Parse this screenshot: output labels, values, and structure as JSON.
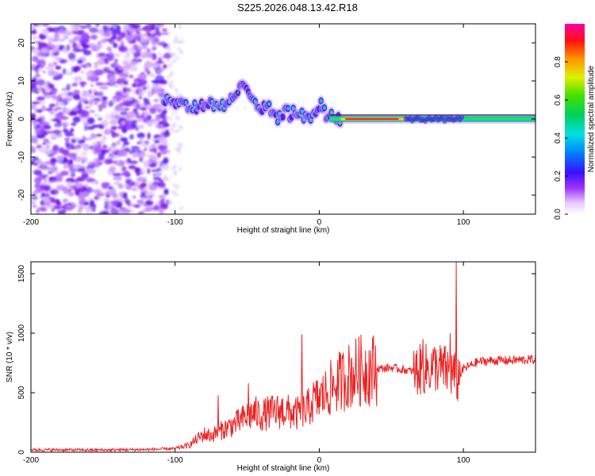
{
  "title": "S225.2026.048.13.42.R18",
  "colors": {
    "snr_line": "#ee2222",
    "spectrogram_low": "#7b00e0",
    "ridge": "#ff0000"
  },
  "chart_data": [
    {
      "type": "heatmap",
      "title": "",
      "xlabel": "Height of straight line (km)",
      "ylabel": "Frequency (Hz)",
      "xlim": [
        -200,
        150
      ],
      "ylim": [
        -25,
        25
      ],
      "x_ticks": [
        -200,
        -100,
        0,
        100
      ],
      "x_tick_labels": [
        "-200",
        "-100",
        "0",
        "100"
      ],
      "y_ticks": [
        20,
        10,
        0,
        -10,
        -20
      ],
      "y_tick_labels": [
        "20",
        "10",
        "0",
        "-10",
        "-20"
      ],
      "colorbar": {
        "label": "Normalized spectral amplitude",
        "range": [
          0,
          1
        ],
        "ticks": [
          0.0,
          0.2,
          0.4,
          0.6,
          0.8
        ],
        "tick_labels": [
          "0.0",
          "0.2",
          "0.4",
          "0.6",
          "0.8"
        ],
        "colormap": "rainbow (white-purple-blue-cyan-green-yellow-orange-red-magenta)"
      },
      "ridge": {
        "x": [
          -108,
          -100,
          -90,
          -80,
          -70,
          -60,
          -52,
          -45,
          -40,
          -35,
          -30,
          -25,
          -20,
          -15,
          -10,
          -5,
          0,
          2,
          5,
          10,
          15,
          30,
          50,
          60,
          70,
          80,
          90,
          100,
          110,
          130,
          150
        ],
        "y": [
          4,
          5,
          3,
          4,
          3,
          5,
          9,
          6,
          2,
          4,
          0,
          2,
          1,
          2,
          0,
          1,
          4,
          3,
          1,
          1,
          0,
          0,
          0,
          0,
          0,
          0,
          0,
          0,
          0,
          0,
          0
        ]
      },
      "noise_region_x": [
        -200,
        -105
      ]
    },
    {
      "type": "line",
      "title": "",
      "xlabel": "Height of straight line (km)",
      "ylabel": "SNR (10 * v/v)",
      "xlim": [
        -200,
        150
      ],
      "ylim": [
        0,
        1600
      ],
      "x_ticks": [
        -200,
        -100,
        0,
        100
      ],
      "x_tick_labels": [
        "-200",
        "-100",
        "0",
        "100"
      ],
      "y_ticks": [
        0,
        500,
        1000,
        1500
      ],
      "y_tick_labels": [
        "0",
        "500",
        "1000",
        "1500"
      ],
      "series": [
        {
          "x": [
            -200,
            -180,
            -160,
            -140,
            -120,
            -100,
            -90,
            -85,
            -80,
            -75,
            -70,
            -65,
            -60,
            -55,
            -50,
            -45,
            -40,
            -35,
            -30,
            -25,
            -20,
            -15,
            -12,
            -10,
            -5,
            0,
            5,
            10,
            15,
            20,
            25,
            30,
            40,
            50,
            60,
            65,
            70,
            75,
            80,
            85,
            90,
            94,
            95,
            96,
            100,
            110,
            120,
            130,
            140,
            150
          ],
          "y": [
            20,
            20,
            18,
            20,
            22,
            30,
            60,
            110,
            150,
            140,
            170,
            200,
            230,
            260,
            300,
            330,
            310,
            330,
            340,
            350,
            330,
            320,
            370,
            330,
            420,
            450,
            500,
            560,
            600,
            640,
            670,
            690,
            700,
            710,
            690,
            680,
            690,
            700,
            720,
            700,
            680,
            650,
            600,
            620,
            700,
            760,
            770,
            770,
            775,
            780
          ],
          "spikes": [
            {
              "x": -49,
              "y": 580
            },
            {
              "x": -12,
              "y": 990
            },
            {
              "x": 95,
              "y": 1600
            },
            {
              "x": 91,
              "y": 1000
            },
            {
              "x": 72,
              "y": 950
            },
            {
              "x": -70,
              "y": 480
            }
          ]
        }
      ]
    }
  ]
}
